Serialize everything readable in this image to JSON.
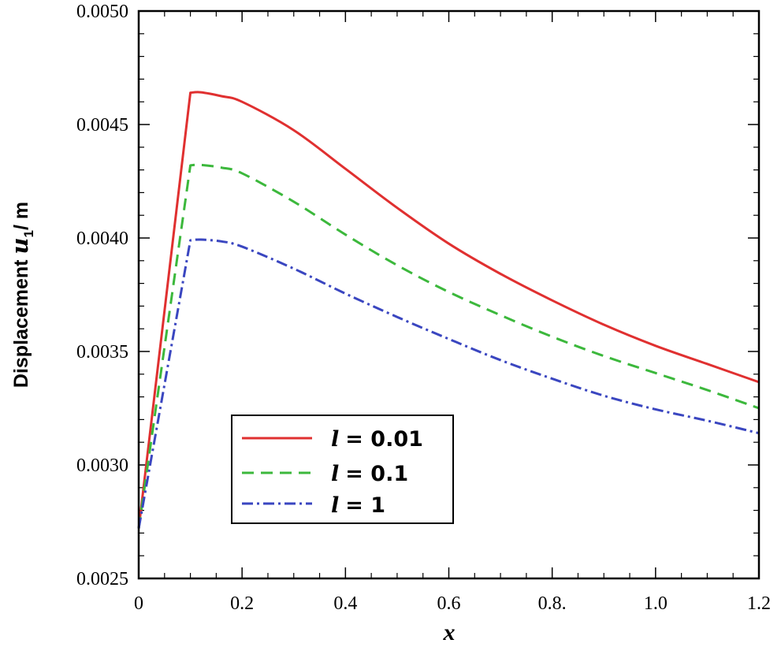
{
  "chart_data": {
    "type": "line",
    "title": "",
    "xlabel": "x",
    "ylabel": "Displacement u1 / m",
    "ylabel_parts": {
      "prefix": "Displacement ",
      "var": "u",
      "sub": "1",
      "suffix": "/ m"
    },
    "xlim": [
      0,
      1.2
    ],
    "ylim": [
      0.0025,
      0.005
    ],
    "x_ticks": [
      0,
      0.2,
      0.4,
      0.6,
      0.8,
      1.0,
      1.2
    ],
    "x_tick_labels": [
      "0",
      "0.2",
      "0.4",
      "0.6",
      "0.8.",
      "1.0",
      "1.2"
    ],
    "y_ticks": [
      0.0025,
      0.003,
      0.0035,
      0.004,
      0.0045,
      0.005
    ],
    "y_tick_labels": [
      "0.0025",
      "0.0030",
      "0.0035",
      "0.0040",
      "0.0045",
      "0.0050"
    ],
    "grid": false,
    "legend_position": "lower-left",
    "series": [
      {
        "name": "l = 0.01",
        "label_var": "l",
        "label_value": "= 0.01",
        "color": "#e03030",
        "style": "solid",
        "x": [
          0,
          0.1,
          0.12,
          0.16,
          0.2,
          0.3,
          0.4,
          0.5,
          0.6,
          0.7,
          0.8,
          0.9,
          1.0,
          1.1,
          1.2
        ],
        "y": [
          0.00272,
          0.00464,
          0.004642,
          0.004625,
          0.0046,
          0.004475,
          0.004305,
          0.004133,
          0.003975,
          0.003842,
          0.003725,
          0.003618,
          0.003525,
          0.003445,
          0.003365
        ]
      },
      {
        "name": "l = 0.1",
        "label_var": "l",
        "label_value": "= 0.1",
        "color": "#3cb83c",
        "style": "dashed",
        "x": [
          0,
          0.1,
          0.12,
          0.16,
          0.2,
          0.3,
          0.4,
          0.5,
          0.6,
          0.7,
          0.8,
          0.9,
          1.0,
          1.1,
          1.2
        ],
        "y": [
          0.00272,
          0.00432,
          0.004322,
          0.00431,
          0.004285,
          0.00416,
          0.004015,
          0.00388,
          0.003762,
          0.00366,
          0.003565,
          0.00348,
          0.003405,
          0.00333,
          0.00325
        ]
      },
      {
        "name": "l = 1",
        "label_var": "l",
        "label_value": "= 1",
        "color": "#3a46c0",
        "style": "dashdot",
        "x": [
          0,
          0.1,
          0.12,
          0.16,
          0.2,
          0.3,
          0.4,
          0.5,
          0.6,
          0.7,
          0.8,
          0.9,
          1.0,
          1.1,
          1.2
        ],
        "y": [
          0.00272,
          0.00399,
          0.003993,
          0.003985,
          0.003962,
          0.003865,
          0.003755,
          0.003652,
          0.003555,
          0.003462,
          0.00338,
          0.003305,
          0.003245,
          0.003195,
          0.00314
        ]
      }
    ]
  }
}
